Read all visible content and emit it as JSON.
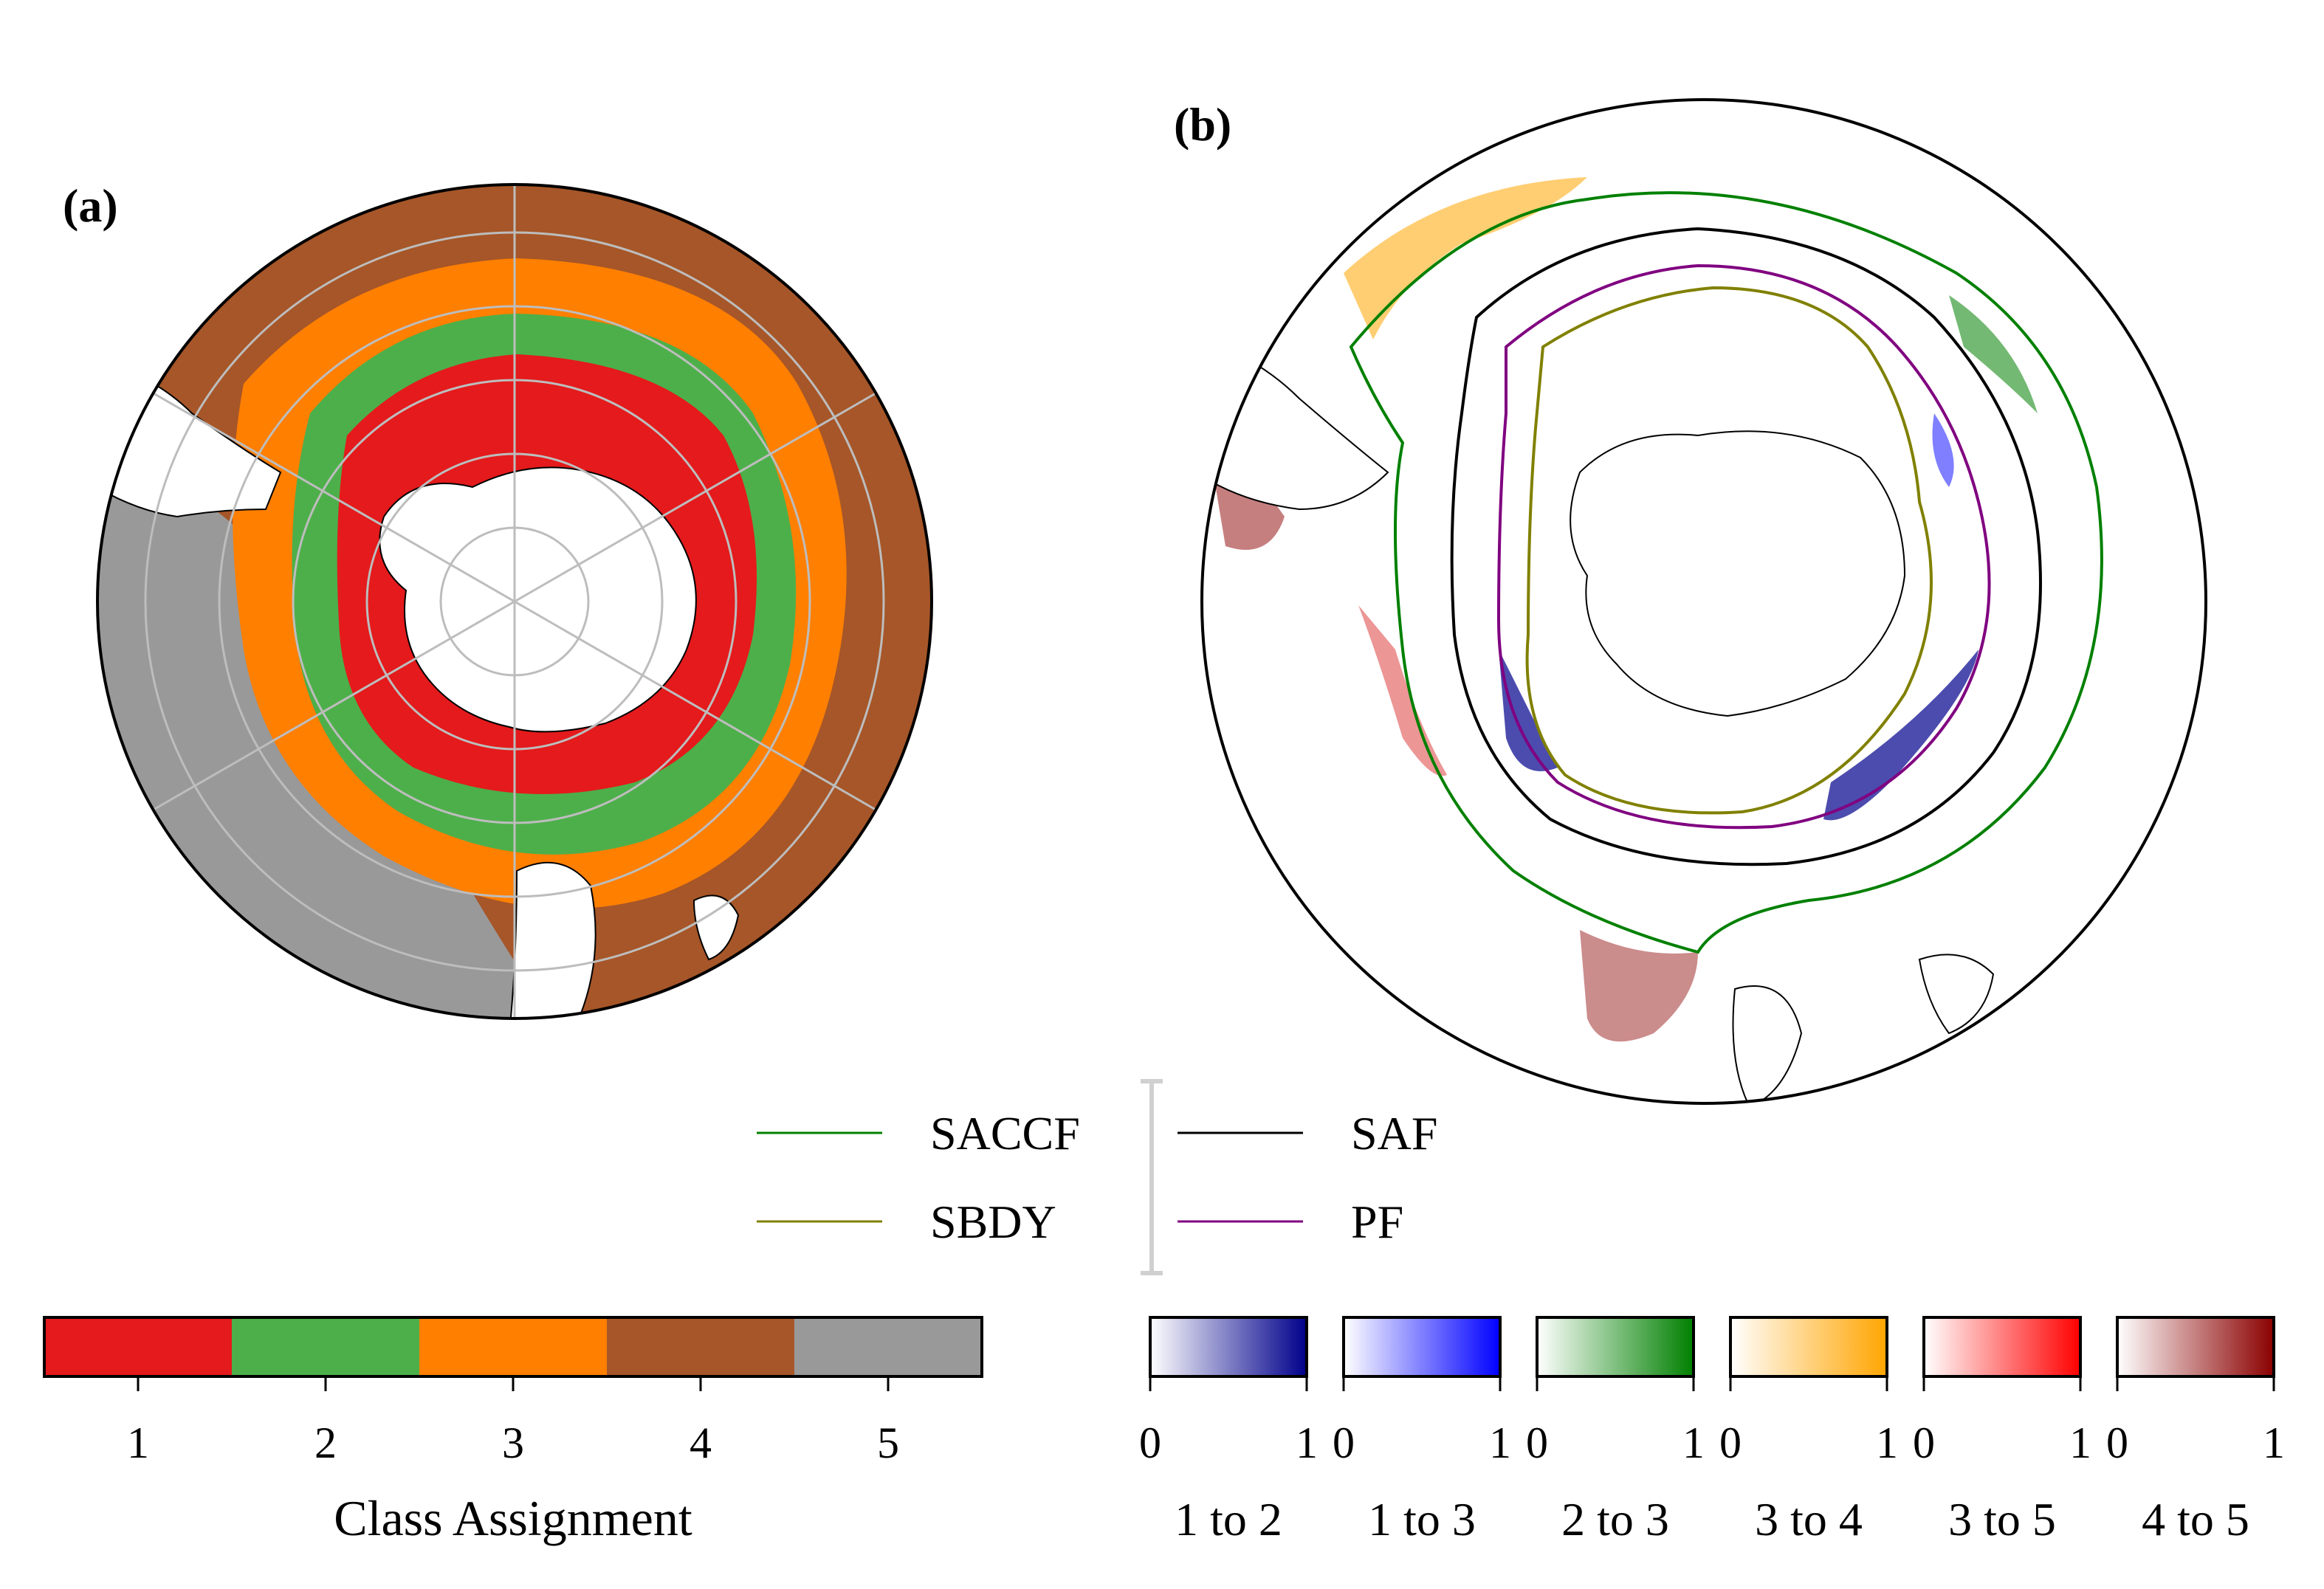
{
  "panel_a": {
    "label": "(a)",
    "colorbar": {
      "title": "Class Assignment",
      "ticks": [
        "1",
        "2",
        "3",
        "4",
        "5"
      ],
      "colors": [
        "#e41a1c",
        "#4daf4a",
        "#ff7f00",
        "#a65628",
        "#999999"
      ]
    }
  },
  "panel_b": {
    "label": "(b)",
    "legend": [
      {
        "label": "SACCF",
        "color": "#008000"
      },
      {
        "label": "SBDY",
        "color": "#808000"
      },
      {
        "label": "SAF",
        "color": "#000000"
      },
      {
        "label": "PF",
        "color": "#800080"
      }
    ],
    "transition_colorbars": [
      {
        "label": "1 to 2",
        "min": "0",
        "max": "1",
        "color": "#00008b"
      },
      {
        "label": "1 to 3",
        "min": "0",
        "max": "1",
        "color": "#0000ff"
      },
      {
        "label": "2 to 3",
        "min": "0",
        "max": "1",
        "color": "#008000"
      },
      {
        "label": "3 to 4",
        "min": "0",
        "max": "1",
        "color": "#ffa500"
      },
      {
        "label": "3 to 5",
        "min": "0",
        "max": "1",
        "color": "#ff0000"
      },
      {
        "label": "4 to 5",
        "min": "0",
        "max": "1",
        "color": "#8b0000"
      }
    ]
  }
}
